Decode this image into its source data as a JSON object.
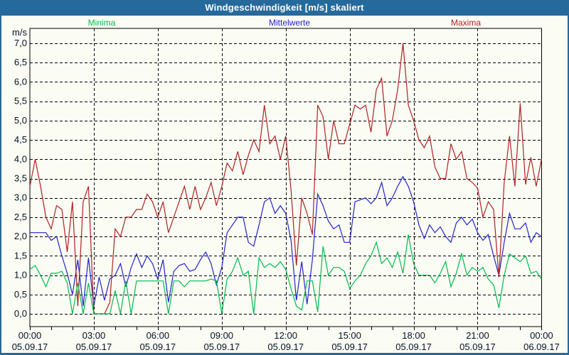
{
  "window": {
    "title": "Windgeschwindigkeit [m/s] skaliert"
  },
  "colors": {
    "titlebar_bg": "#26699B",
    "titlebar_text": "#FFFFFF",
    "background": "#FBFDF5",
    "grid": "#000000",
    "axis_text": "#001020",
    "minima": "#00BB4C",
    "mittelwerte": "#2222CC",
    "maxima": "#B02020"
  },
  "legend": [
    {
      "label": "Minima",
      "color": "#00BB4C"
    },
    {
      "label": "Mittelwerte",
      "color": "#2222CC"
    },
    {
      "label": "Maxima",
      "color": "#B02020"
    }
  ],
  "y_axis": {
    "unit": "m/s",
    "ticks": [
      "0,0",
      "0,5",
      "1,0",
      "1,5",
      "2,0",
      "2,5",
      "3,0",
      "3,5",
      "4,0",
      "4,5",
      "5,0",
      "5,5",
      "6,0",
      "6,5",
      "7,0"
    ]
  },
  "x_axis": {
    "ticks": [
      {
        "time": "00:00",
        "date": "05.09.17"
      },
      {
        "time": "03:00",
        "date": "05.09.17"
      },
      {
        "time": "06:00",
        "date": "05.09.17"
      },
      {
        "time": "09:00",
        "date": "05.09.17"
      },
      {
        "time": "12:00",
        "date": "05.09.17"
      },
      {
        "time": "15:00",
        "date": "05.09.17"
      },
      {
        "time": "18:00",
        "date": "05.09.17"
      },
      {
        "time": "21:00",
        "date": "05.09.17"
      },
      {
        "time": "00:00",
        "date": "06.09.17"
      }
    ]
  },
  "chart_data": {
    "type": "line",
    "title": "Windgeschwindigkeit [m/s] skaliert",
    "ylabel": "m/s",
    "ylim": [
      0.0,
      7.0
    ],
    "y_step": 0.5,
    "x_start_hour": 0,
    "x_end_hour": 24,
    "interval_minutes": 15,
    "grid": "dashed",
    "vertical_grid_hours": 3,
    "legend_position": "top",
    "series": [
      {
        "name": "Minima",
        "color": "#00BB4C",
        "values": [
          1.15,
          1.25,
          1.0,
          0.7,
          1.05,
          1.05,
          1.1,
          0.8,
          0.0,
          0.8,
          0.0,
          0.8,
          0.0,
          0.0,
          0.0,
          0.0,
          0.6,
          0.0,
          0.85,
          0.0,
          0.85,
          0.85,
          0.85,
          0.85,
          0.85,
          0.85,
          0.0,
          0.85,
          0.85,
          0.7,
          0.85,
          0.85,
          0.85,
          0.85,
          0.9,
          0.85,
          0.0,
          0.9,
          1.1,
          1.45,
          1.0,
          1.1,
          0.0,
          1.45,
          1.2,
          1.3,
          1.2,
          1.35,
          1.15,
          0.65,
          0.2,
          0.1,
          0.85,
          0.85,
          0.05,
          1.75,
          1.0,
          1.2,
          1.2,
          1.1,
          0.65,
          0.85,
          1.0,
          1.3,
          1.5,
          1.85,
          1.3,
          1.45,
          1.2,
          1.6,
          1.05,
          2.05,
          1.3,
          1.0,
          1.0,
          1.0,
          0.8,
          1.05,
          1.35,
          0.7,
          1.05,
          1.55,
          1.0,
          1.2,
          1.1,
          1.2,
          0.9,
          0.75,
          0.15,
          1.0,
          1.55,
          1.45,
          1.35,
          1.5,
          1.05,
          1.1,
          0.9
        ]
      },
      {
        "name": "Mittelwerte",
        "color": "#2222CC",
        "values": [
          2.1,
          2.1,
          2.1,
          2.1,
          1.9,
          2.0,
          1.5,
          1.05,
          0.5,
          1.4,
          0.2,
          1.45,
          0.2,
          0.95,
          0.35,
          0.9,
          1.0,
          1.3,
          0.7,
          1.2,
          1.55,
          1.2,
          1.5,
          1.3,
          0.9,
          1.4,
          0.3,
          1.1,
          1.25,
          1.3,
          1.1,
          1.15,
          1.4,
          1.6,
          1.3,
          0.75,
          1.2,
          2.1,
          2.3,
          2.5,
          2.5,
          1.85,
          1.75,
          2.3,
          2.9,
          3.0,
          2.6,
          2.8,
          2.6,
          1.9,
          0.35,
          1.35,
          0.25,
          1.4,
          3.1,
          2.8,
          2.4,
          2.2,
          2.3,
          1.85,
          1.85,
          2.9,
          2.95,
          3.0,
          2.85,
          3.0,
          3.4,
          2.8,
          3.0,
          3.3,
          3.55,
          3.3,
          2.9,
          2.3,
          1.95,
          2.3,
          2.1,
          2.25,
          2.0,
          1.85,
          2.35,
          2.5,
          2.3,
          2.45,
          2.1,
          1.9,
          2.05,
          1.5,
          1.0,
          1.85,
          2.6,
          2.2,
          2.2,
          2.35,
          1.85,
          2.1,
          2.0
        ]
      },
      {
        "name": "Maxima",
        "color": "#B02020",
        "values": [
          3.3,
          4.0,
          3.3,
          2.5,
          2.2,
          2.8,
          2.7,
          1.6,
          2.9,
          0.2,
          2.9,
          3.3,
          0.0,
          0.0,
          0.0,
          0.3,
          2.2,
          2.0,
          2.5,
          2.5,
          2.7,
          2.7,
          3.1,
          2.9,
          2.5,
          2.9,
          2.1,
          2.5,
          2.9,
          3.3,
          2.7,
          3.3,
          2.7,
          3.0,
          3.4,
          2.8,
          3.3,
          3.9,
          3.7,
          4.2,
          3.6,
          4.1,
          4.5,
          4.2,
          5.4,
          4.4,
          4.6,
          4.0,
          4.6,
          3.2,
          1.25,
          3.0,
          2.6,
          2.05,
          5.4,
          5.1,
          4.0,
          5.0,
          4.4,
          4.4,
          4.9,
          5.4,
          5.3,
          5.4,
          4.7,
          5.8,
          6.1,
          4.6,
          5.0,
          5.8,
          7.0,
          5.4,
          5.0,
          4.5,
          4.3,
          4.6,
          3.8,
          3.5,
          3.5,
          4.4,
          4.0,
          4.2,
          3.5,
          3.4,
          3.25,
          2.5,
          2.9,
          2.7,
          0.95,
          3.4,
          4.6,
          3.3,
          5.45,
          3.35,
          4.05,
          3.3,
          4.0
        ]
      }
    ]
  }
}
